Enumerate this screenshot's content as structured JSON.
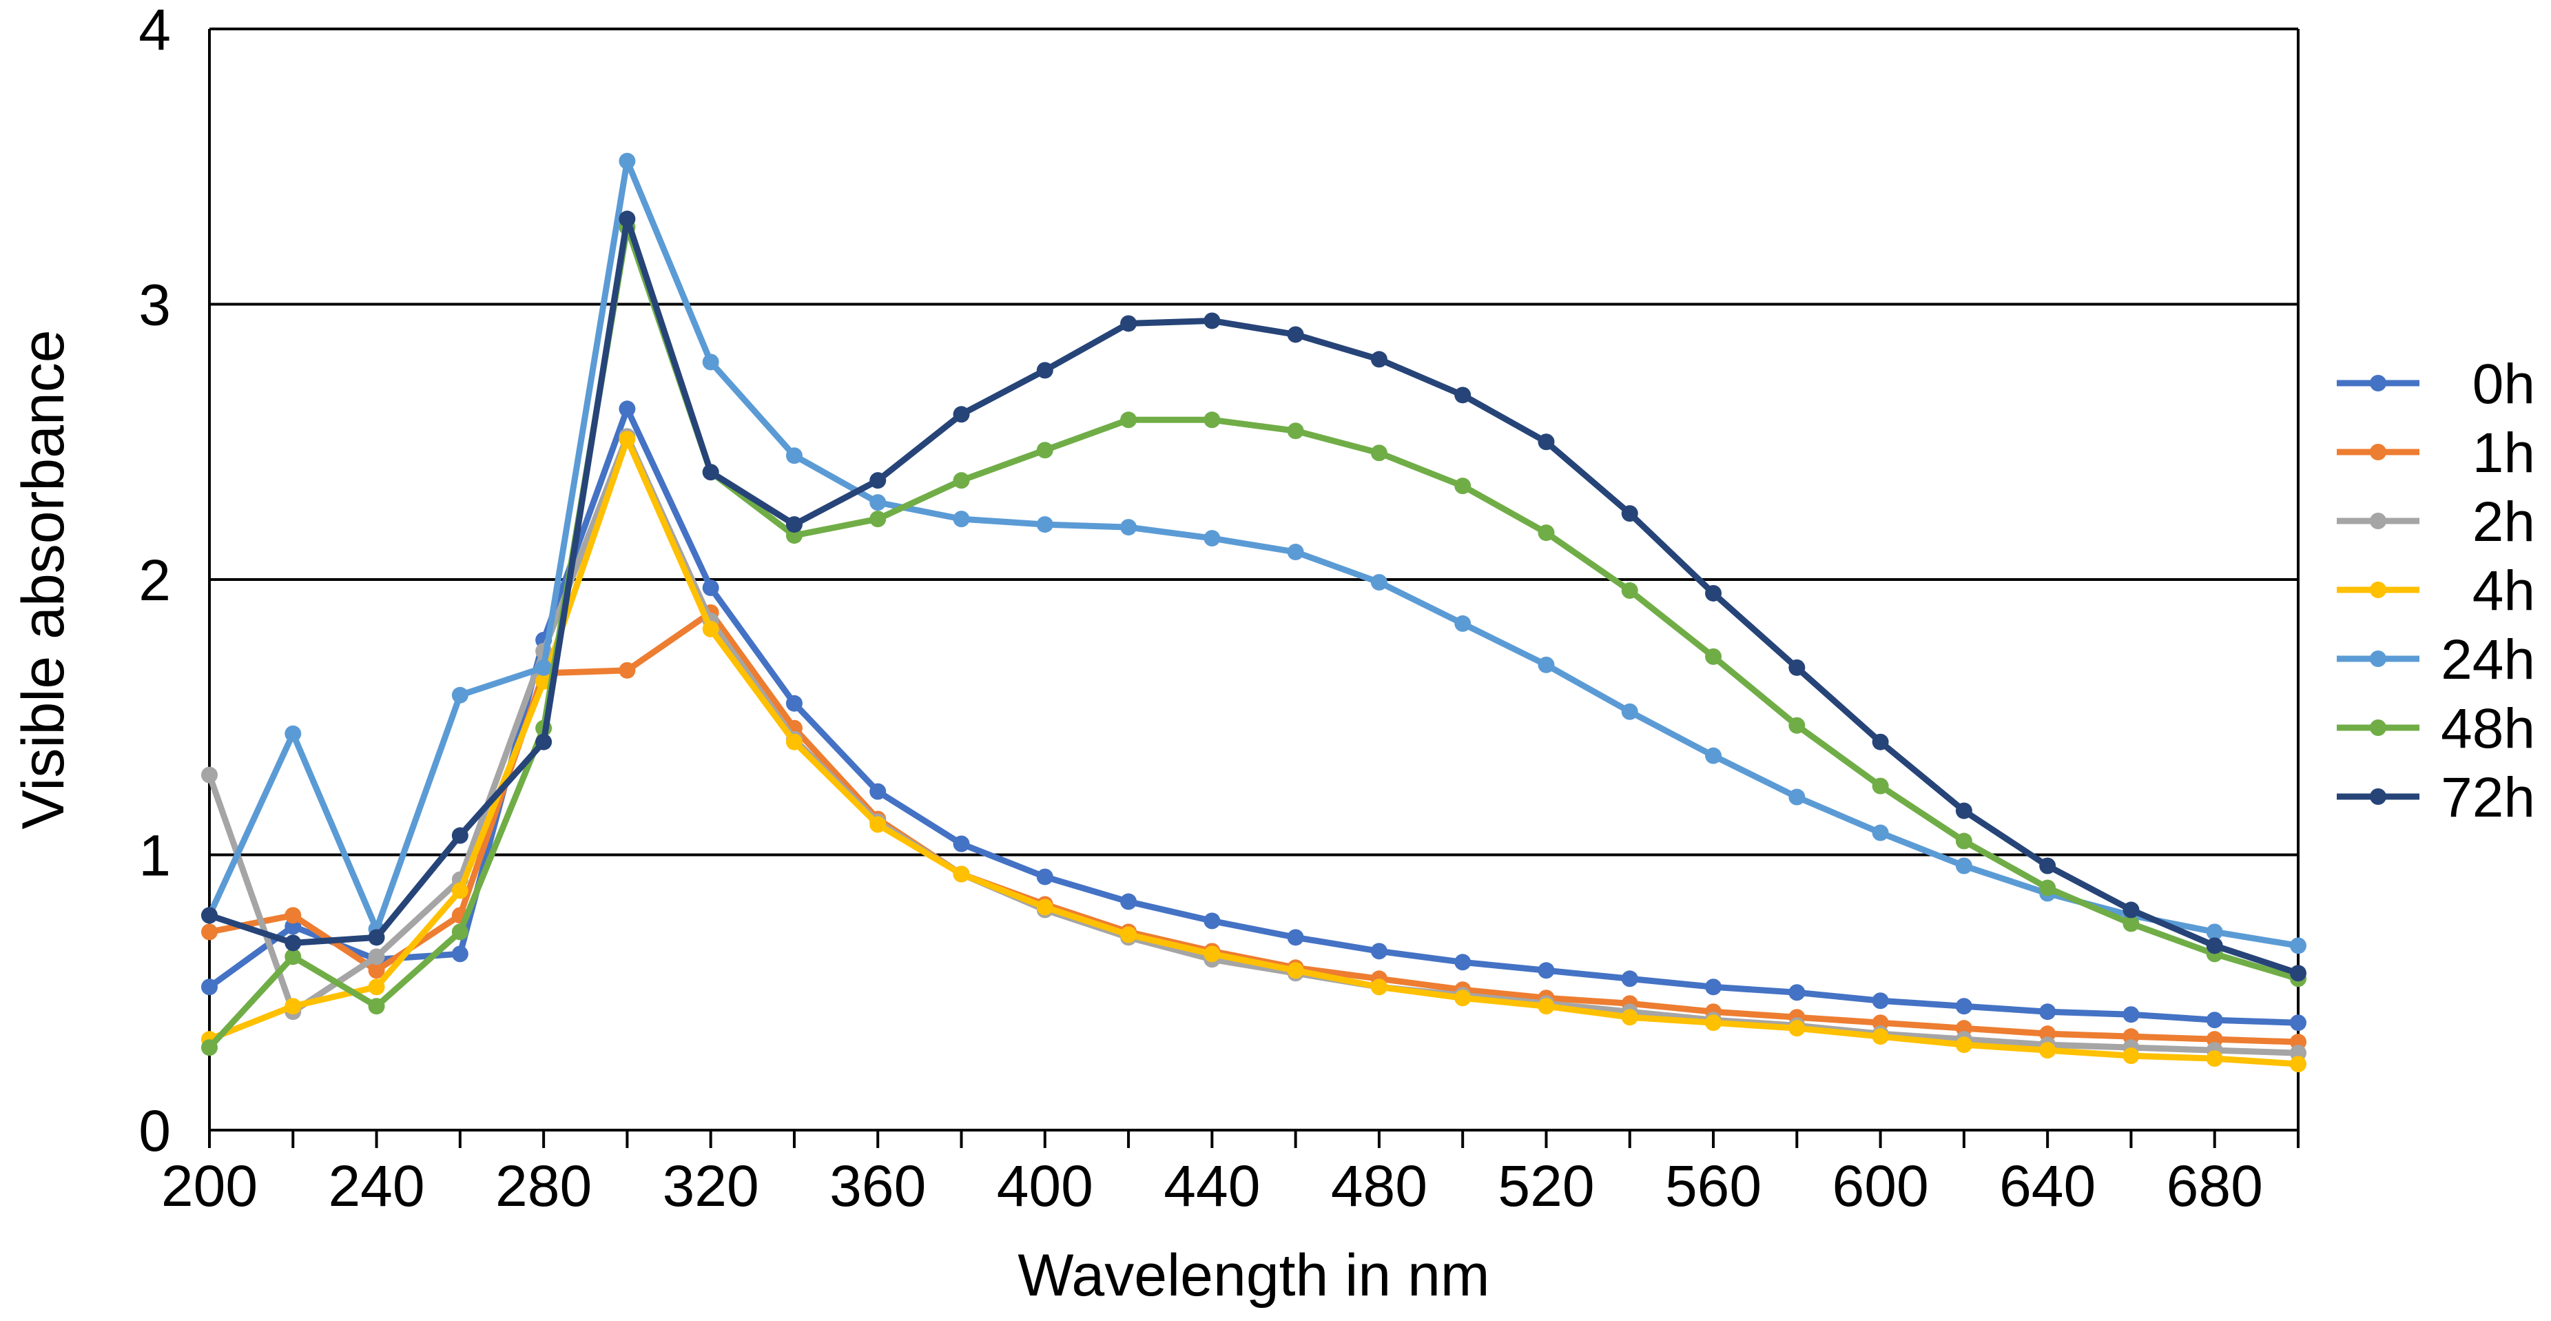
{
  "chart_data": {
    "type": "line",
    "title": "",
    "xlabel": "Wavelength in nm",
    "ylabel": "Visible absorbance",
    "xlim": [
      200,
      700
    ],
    "ylim": [
      0,
      4
    ],
    "x_ticks": [
      200,
      240,
      280,
      320,
      360,
      400,
      440,
      480,
      520,
      560,
      600,
      640,
      680
    ],
    "y_ticks": [
      0,
      1,
      2,
      3,
      4
    ],
    "gridlines_y": [
      1,
      2,
      3
    ],
    "legend_position": "right",
    "x": [
      200,
      220,
      240,
      260,
      280,
      300,
      320,
      340,
      360,
      380,
      400,
      420,
      440,
      460,
      480,
      500,
      520,
      540,
      560,
      580,
      600,
      620,
      640,
      660,
      680,
      700
    ],
    "series": [
      {
        "name": "0h",
        "color": "#4472C4",
        "values": [
          0.52,
          0.74,
          0.62,
          0.64,
          1.78,
          2.62,
          1.97,
          1.55,
          1.23,
          1.04,
          0.92,
          0.83,
          0.76,
          0.7,
          0.65,
          0.61,
          0.58,
          0.55,
          0.52,
          0.5,
          0.47,
          0.45,
          0.43,
          0.42,
          0.4,
          0.39
        ]
      },
      {
        "name": "1h",
        "color": "#ED7D31",
        "values": [
          0.72,
          0.78,
          0.58,
          0.78,
          1.66,
          1.67,
          1.88,
          1.46,
          1.13,
          0.93,
          0.82,
          0.72,
          0.65,
          0.59,
          0.55,
          0.51,
          0.48,
          0.46,
          0.43,
          0.41,
          0.39,
          0.37,
          0.35,
          0.34,
          0.33,
          0.32
        ]
      },
      {
        "name": "2h",
        "color": "#A5A5A5",
        "values": [
          1.29,
          0.43,
          0.63,
          0.91,
          1.74,
          2.52,
          1.85,
          1.42,
          1.12,
          0.93,
          0.8,
          0.7,
          0.62,
          0.57,
          0.52,
          0.49,
          0.46,
          0.43,
          0.4,
          0.38,
          0.35,
          0.33,
          0.31,
          0.3,
          0.29,
          0.28
        ]
      },
      {
        "name": "4h",
        "color": "#FFC000",
        "values": [
          0.33,
          0.45,
          0.52,
          0.87,
          1.63,
          2.51,
          1.82,
          1.41,
          1.11,
          0.93,
          0.81,
          0.71,
          0.64,
          0.58,
          0.52,
          0.48,
          0.45,
          0.41,
          0.39,
          0.37,
          0.34,
          0.31,
          0.29,
          0.27,
          0.26,
          0.24
        ]
      },
      {
        "name": "24h",
        "color": "#5B9BD5",
        "values": [
          0.78,
          1.44,
          0.73,
          1.58,
          1.68,
          3.52,
          2.79,
          2.45,
          2.28,
          2.22,
          2.2,
          2.19,
          2.15,
          2.1,
          1.99,
          1.84,
          1.69,
          1.52,
          1.36,
          1.21,
          1.08,
          0.96,
          0.86,
          0.78,
          0.72,
          0.67
        ]
      },
      {
        "name": "48h",
        "color": "#70AD47",
        "values": [
          0.3,
          0.63,
          0.45,
          0.72,
          1.46,
          3.28,
          2.39,
          2.16,
          2.22,
          2.36,
          2.47,
          2.58,
          2.58,
          2.54,
          2.46,
          2.34,
          2.17,
          1.96,
          1.72,
          1.47,
          1.25,
          1.05,
          0.88,
          0.75,
          0.64,
          0.55
        ]
      },
      {
        "name": "72h",
        "color": "#264478",
        "values": [
          0.78,
          0.68,
          0.7,
          1.07,
          1.41,
          3.31,
          2.39,
          2.2,
          2.36,
          2.6,
          2.76,
          2.93,
          2.94,
          2.89,
          2.8,
          2.67,
          2.5,
          2.24,
          1.95,
          1.68,
          1.41,
          1.16,
          0.96,
          0.8,
          0.67,
          0.57
        ]
      }
    ]
  }
}
